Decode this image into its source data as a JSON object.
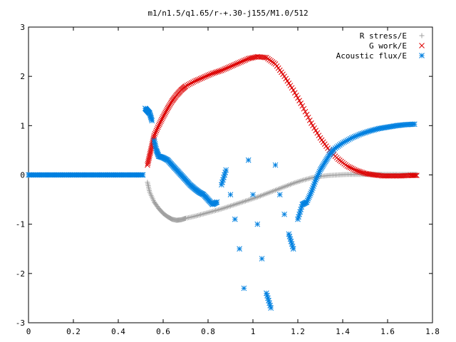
{
  "chart_data": {
    "type": "scatter",
    "title": "m1/n1.5/q1.65/r-+.30-j155/M1.0/512",
    "xlim": [
      0,
      1.8
    ],
    "ylim": [
      -3,
      3
    ],
    "x_ticks": [
      "0",
      "0.2",
      "0.4",
      "0.6",
      "0.8",
      "1",
      "1.2",
      "1.4",
      "1.6",
      "1.8"
    ],
    "y_ticks": [
      "-3",
      "-2",
      "-1",
      "0",
      "1",
      "2",
      "3"
    ],
    "legend_position": "top-right",
    "grid": false,
    "series": [
      {
        "name": "R stress/E",
        "marker": "plus",
        "color": "#a0a0a0",
        "points": [
          [
            0.53,
            -0.15
          ],
          [
            0.54,
            -0.35
          ],
          [
            0.56,
            -0.55
          ],
          [
            0.58,
            -0.68
          ],
          [
            0.6,
            -0.78
          ],
          [
            0.62,
            -0.85
          ],
          [
            0.64,
            -0.9
          ],
          [
            0.66,
            -0.92
          ],
          [
            0.68,
            -0.91
          ],
          [
            0.7,
            -0.88
          ],
          [
            0.74,
            -0.84
          ],
          [
            0.78,
            -0.79
          ],
          [
            0.82,
            -0.74
          ],
          [
            0.86,
            -0.69
          ],
          [
            0.9,
            -0.63
          ],
          [
            0.94,
            -0.57
          ],
          [
            0.98,
            -0.51
          ],
          [
            1.02,
            -0.45
          ],
          [
            1.06,
            -0.38
          ],
          [
            1.1,
            -0.31
          ],
          [
            1.14,
            -0.24
          ],
          [
            1.18,
            -0.17
          ],
          [
            1.22,
            -0.11
          ],
          [
            1.26,
            -0.06
          ],
          [
            1.3,
            -0.03
          ],
          [
            1.34,
            -0.01
          ],
          [
            1.38,
            0.0
          ],
          [
            1.42,
            0.01
          ],
          [
            1.46,
            0.01
          ],
          [
            1.5,
            0.01
          ],
          [
            1.54,
            0.01
          ],
          [
            1.58,
            0.01
          ],
          [
            1.62,
            0.01
          ],
          [
            1.66,
            0.01
          ],
          [
            1.7,
            0.01
          ],
          [
            1.73,
            0.01
          ]
        ]
      },
      {
        "name": "G work/E",
        "marker": "cross",
        "color": "#dd0000",
        "points": [
          [
            0.53,
            0.2
          ],
          [
            0.54,
            0.4
          ],
          [
            0.55,
            0.6
          ],
          [
            0.56,
            0.8
          ],
          [
            0.58,
            1.0
          ],
          [
            0.6,
            1.18
          ],
          [
            0.62,
            1.35
          ],
          [
            0.64,
            1.5
          ],
          [
            0.66,
            1.62
          ],
          [
            0.68,
            1.72
          ],
          [
            0.7,
            1.8
          ],
          [
            0.74,
            1.9
          ],
          [
            0.78,
            1.98
          ],
          [
            0.82,
            2.06
          ],
          [
            0.86,
            2.12
          ],
          [
            0.9,
            2.2
          ],
          [
            0.94,
            2.28
          ],
          [
            0.98,
            2.36
          ],
          [
            1.02,
            2.4
          ],
          [
            1.06,
            2.38
          ],
          [
            1.1,
            2.25
          ],
          [
            1.14,
            2.0
          ],
          [
            1.18,
            1.72
          ],
          [
            1.22,
            1.4
          ],
          [
            1.26,
            1.05
          ],
          [
            1.3,
            0.75
          ],
          [
            1.34,
            0.5
          ],
          [
            1.38,
            0.32
          ],
          [
            1.42,
            0.18
          ],
          [
            1.46,
            0.09
          ],
          [
            1.5,
            0.03
          ],
          [
            1.54,
            0.0
          ],
          [
            1.58,
            -0.02
          ],
          [
            1.62,
            -0.02
          ],
          [
            1.66,
            -0.02
          ],
          [
            1.7,
            -0.01
          ],
          [
            1.73,
            -0.01
          ]
        ]
      },
      {
        "name": "Acoustic flux/E",
        "marker": "star",
        "color": "#0080e0",
        "points": [
          [
            0.0,
            0.0
          ],
          [
            0.03,
            0.0
          ],
          [
            0.06,
            0.0
          ],
          [
            0.09,
            0.0
          ],
          [
            0.12,
            0.0
          ],
          [
            0.15,
            0.0
          ],
          [
            0.18,
            0.0
          ],
          [
            0.21,
            0.0
          ],
          [
            0.24,
            0.0
          ],
          [
            0.27,
            0.0
          ],
          [
            0.3,
            0.0
          ],
          [
            0.33,
            0.0
          ],
          [
            0.36,
            0.0
          ],
          [
            0.39,
            0.0
          ],
          [
            0.42,
            0.0
          ],
          [
            0.45,
            0.0
          ],
          [
            0.48,
            0.0
          ],
          [
            0.51,
            0.0
          ],
          [
            0.52,
            1.35
          ],
          [
            0.53,
            1.3
          ],
          [
            0.54,
            1.25
          ],
          [
            0.55,
            1.1
          ],
          [
            0.56,
            0.7
          ],
          [
            0.57,
            0.5
          ],
          [
            0.58,
            0.38
          ],
          [
            0.6,
            0.35
          ],
          [
            0.62,
            0.3
          ],
          [
            0.64,
            0.2
          ],
          [
            0.66,
            0.1
          ],
          [
            0.68,
            0.0
          ],
          [
            0.7,
            -0.1
          ],
          [
            0.72,
            -0.2
          ],
          [
            0.74,
            -0.28
          ],
          [
            0.76,
            -0.35
          ],
          [
            0.78,
            -0.4
          ],
          [
            0.8,
            -0.5
          ],
          [
            0.82,
            -0.6
          ],
          [
            0.84,
            -0.55
          ],
          [
            0.86,
            -0.2
          ],
          [
            0.88,
            0.1
          ],
          [
            0.9,
            -0.4
          ],
          [
            0.92,
            -0.9
          ],
          [
            0.94,
            -1.5
          ],
          [
            0.96,
            -2.3
          ],
          [
            0.98,
            0.3
          ],
          [
            1.0,
            -0.4
          ],
          [
            1.02,
            -1.0
          ],
          [
            1.04,
            -1.7
          ],
          [
            1.06,
            -2.4
          ],
          [
            1.08,
            -2.7
          ],
          [
            1.1,
            0.2
          ],
          [
            1.12,
            -0.4
          ],
          [
            1.14,
            -0.8
          ],
          [
            1.16,
            -1.2
          ],
          [
            1.18,
            -1.5
          ],
          [
            1.2,
            -0.9
          ],
          [
            1.22,
            -0.6
          ],
          [
            1.24,
            -0.55
          ],
          [
            1.26,
            -0.35
          ],
          [
            1.28,
            -0.1
          ],
          [
            1.3,
            0.1
          ],
          [
            1.32,
            0.25
          ],
          [
            1.34,
            0.4
          ],
          [
            1.36,
            0.52
          ],
          [
            1.4,
            0.65
          ],
          [
            1.44,
            0.75
          ],
          [
            1.48,
            0.83
          ],
          [
            1.52,
            0.89
          ],
          [
            1.56,
            0.94
          ],
          [
            1.6,
            0.97
          ],
          [
            1.64,
            1.0
          ],
          [
            1.68,
            1.02
          ],
          [
            1.72,
            1.03
          ]
        ]
      }
    ]
  }
}
